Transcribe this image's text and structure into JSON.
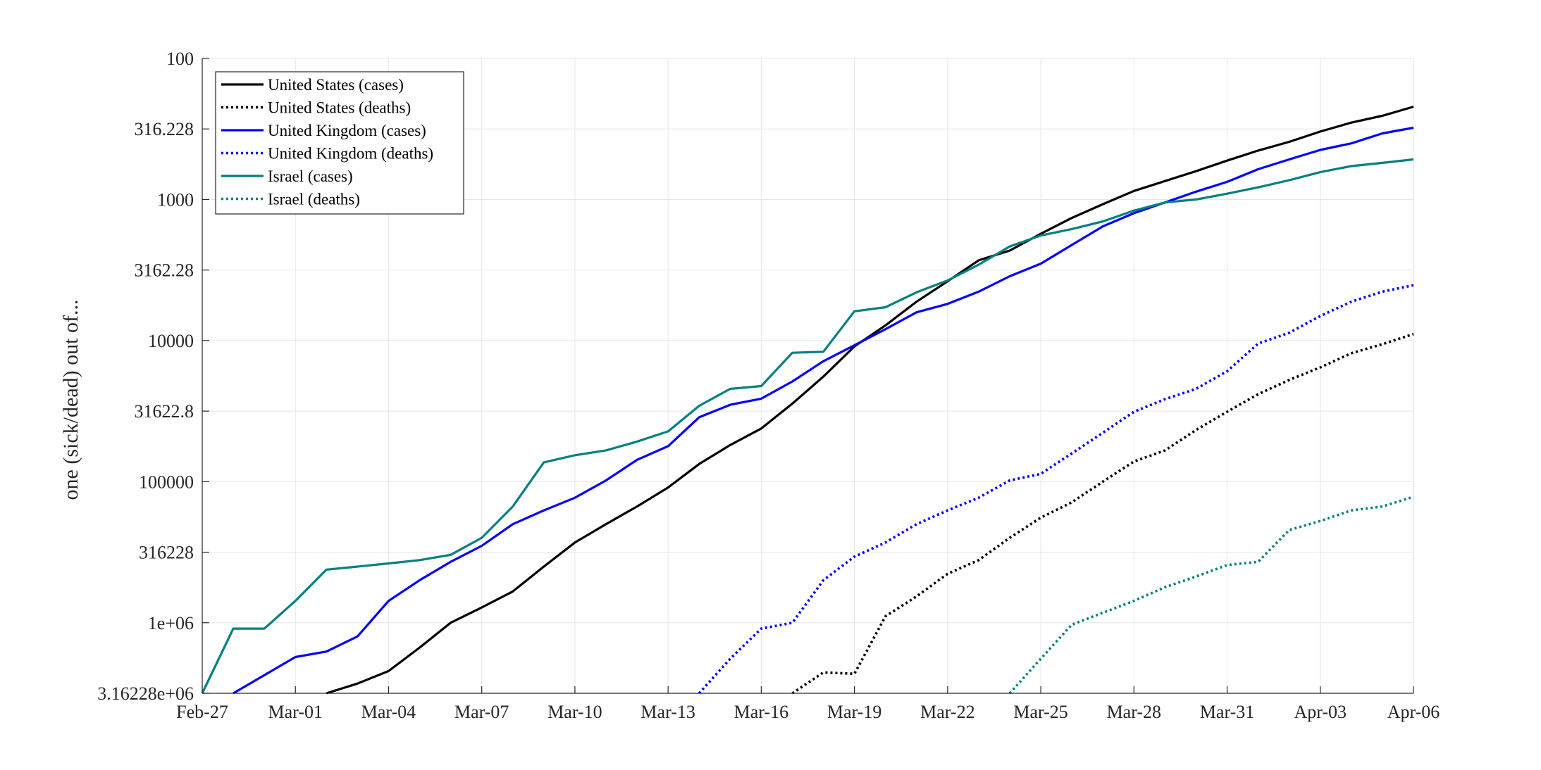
{
  "chart_data": {
    "type": "line",
    "title": "",
    "xlabel": "",
    "ylabel": "one (sick/dead) out of...",
    "yscale": "log",
    "yreversed": true,
    "ylim": [
      3162277.66,
      100
    ],
    "xlim": [
      "Feb-27",
      "Apr-06"
    ],
    "grid": true,
    "legend_position": "top-left",
    "x_ticks": [
      "Feb-27",
      "Mar-01",
      "Mar-04",
      "Mar-07",
      "Mar-10",
      "Mar-13",
      "Mar-16",
      "Mar-19",
      "Mar-22",
      "Mar-25",
      "Mar-28",
      "Mar-31",
      "Apr-03",
      "Apr-06"
    ],
    "y_ticks": [
      "100",
      "316.228",
      "1000",
      "3162.28",
      "10000",
      "31622.8",
      "100000",
      "316228",
      "1e+06",
      "3.16228e+06"
    ],
    "y_tick_values": [
      100,
      316.228,
      1000,
      3162.28,
      10000,
      31622.8,
      100000,
      316228,
      1000000,
      3162280
    ],
    "series": [
      {
        "name": "United States (cases)",
        "color": "#000000",
        "style": "solid",
        "x": [
          "Mar-02",
          "Mar-03",
          "Mar-04",
          "Mar-05",
          "Mar-06",
          "Mar-07",
          "Mar-08",
          "Mar-09",
          "Mar-10",
          "Mar-11",
          "Mar-12",
          "Mar-13",
          "Mar-14",
          "Mar-15",
          "Mar-16",
          "Mar-17",
          "Mar-18",
          "Mar-19",
          "Mar-20",
          "Mar-21",
          "Mar-22",
          "Mar-23",
          "Mar-24",
          "Mar-25",
          "Mar-26",
          "Mar-27",
          "Mar-28",
          "Mar-29",
          "Mar-30",
          "Mar-31",
          "Apr-01",
          "Apr-02",
          "Apr-03",
          "Apr-04",
          "Apr-05",
          "Apr-06"
        ],
        "y": [
          3162000,
          2700000,
          2200000,
          1500000,
          1000000,
          780000,
          600000,
          400000,
          270000,
          200000,
          150000,
          110000,
          75000,
          55000,
          42000,
          28000,
          18000,
          11000,
          7800,
          5300,
          3800,
          2700,
          2300,
          1750,
          1350,
          1080,
          870,
          740,
          630,
          530,
          450,
          390,
          330,
          285,
          255,
          220
        ]
      },
      {
        "name": "United States (deaths)",
        "color": "#000000",
        "style": "dotted",
        "x": [
          "Mar-17",
          "Mar-18",
          "Mar-19",
          "Mar-20",
          "Mar-21",
          "Mar-22",
          "Mar-23",
          "Mar-24",
          "Mar-25",
          "Mar-26",
          "Mar-27",
          "Mar-28",
          "Mar-29",
          "Mar-30",
          "Mar-31",
          "Apr-01",
          "Apr-02",
          "Apr-03",
          "Apr-04",
          "Apr-05",
          "Apr-06"
        ],
        "y": [
          3162000,
          2250000,
          2300000,
          900000,
          650000,
          450000,
          360000,
          250000,
          180000,
          140000,
          100000,
          72000,
          60000,
          43000,
          32000,
          24000,
          19000,
          15500,
          12300,
          10600,
          9000
        ]
      },
      {
        "name": "United Kingdom (cases)",
        "color": "#0000ff",
        "style": "solid",
        "x": [
          "Feb-28",
          "Mar-01",
          "Mar-02",
          "Mar-03",
          "Mar-04",
          "Mar-05",
          "Mar-06",
          "Mar-07",
          "Mar-08",
          "Mar-09",
          "Mar-10",
          "Mar-11",
          "Mar-12",
          "Mar-13",
          "Mar-14",
          "Mar-15",
          "Mar-16",
          "Mar-17",
          "Mar-18",
          "Mar-19",
          "Mar-20",
          "Mar-21",
          "Mar-22",
          "Mar-23",
          "Mar-24",
          "Mar-25",
          "Mar-26",
          "Mar-27",
          "Mar-28",
          "Mar-29",
          "Mar-30",
          "Mar-31",
          "Apr-01",
          "Apr-02",
          "Apr-03",
          "Apr-04",
          "Apr-05",
          "Apr-06"
        ],
        "y": [
          3162000,
          1750000,
          1600000,
          1250000,
          700000,
          500000,
          370000,
          285000,
          200000,
          160000,
          130000,
          98000,
          70000,
          56000,
          35000,
          28500,
          25800,
          19500,
          14000,
          10800,
          8300,
          6300,
          5500,
          4500,
          3500,
          2850,
          2100,
          1550,
          1250,
          1050,
          880,
          750,
          610,
          520,
          445,
          400,
          340,
          310
        ]
      },
      {
        "name": "United Kingdom (deaths)",
        "color": "#0000ff",
        "style": "dotted",
        "x": [
          "Mar-14",
          "Mar-15",
          "Mar-16",
          "Mar-17",
          "Mar-18",
          "Mar-19",
          "Mar-20",
          "Mar-21",
          "Mar-22",
          "Mar-23",
          "Mar-24",
          "Mar-25",
          "Mar-26",
          "Mar-27",
          "Mar-28",
          "Mar-29",
          "Mar-30",
          "Mar-31",
          "Apr-01",
          "Apr-02",
          "Apr-03",
          "Apr-04",
          "Apr-05",
          "Apr-06"
        ],
        "y": [
          3162000,
          1800000,
          1100000,
          1000000,
          500000,
          340000,
          270000,
          200000,
          160000,
          130000,
          98000,
          88000,
          63000,
          45000,
          32000,
          26000,
          22000,
          16500,
          10500,
          8800,
          6700,
          5300,
          4500,
          4050
        ]
      },
      {
        "name": "Israel (cases)",
        "color": "#008080",
        "style": "solid",
        "x": [
          "Feb-27",
          "Feb-28",
          "Feb-29",
          "Mar-01",
          "Mar-02",
          "Mar-03",
          "Mar-04",
          "Mar-05",
          "Mar-06",
          "Mar-07",
          "Mar-08",
          "Mar-09",
          "Mar-10",
          "Mar-11",
          "Mar-12",
          "Mar-13",
          "Mar-14",
          "Mar-15",
          "Mar-16",
          "Mar-17",
          "Mar-18",
          "Mar-19",
          "Mar-20",
          "Mar-21",
          "Mar-22",
          "Mar-23",
          "Mar-24",
          "Mar-25",
          "Mar-26",
          "Mar-27",
          "Mar-28",
          "Mar-29",
          "Mar-30",
          "Mar-31",
          "Apr-01",
          "Apr-02",
          "Apr-03",
          "Apr-04",
          "Apr-05",
          "Apr-06"
        ],
        "y": [
          3162000,
          1100000,
          1100000,
          700000,
          420000,
          400000,
          380000,
          360000,
          330000,
          250000,
          150000,
          73000,
          65000,
          60000,
          52000,
          44000,
          29000,
          22000,
          21000,
          12200,
          12000,
          6200,
          5800,
          4550,
          3750,
          2900,
          2150,
          1800,
          1620,
          1430,
          1200,
          1050,
          1000,
          910,
          820,
          730,
          640,
          580,
          550,
          520
        ]
      },
      {
        "name": "Israel (deaths)",
        "color": "#008080",
        "style": "dotted",
        "x": [
          "Mar-24",
          "Mar-25",
          "Mar-26",
          "Mar-27",
          "Mar-28",
          "Mar-29",
          "Mar-30",
          "Mar-31",
          "Apr-01",
          "Apr-02",
          "Apr-03",
          "Apr-04",
          "Apr-05",
          "Apr-06"
        ],
        "y": [
          3162000,
          1800000,
          1030000,
          850000,
          700000,
          560000,
          470000,
          390000,
          370000,
          220000,
          190000,
          160000,
          150000,
          128000
        ]
      }
    ]
  }
}
